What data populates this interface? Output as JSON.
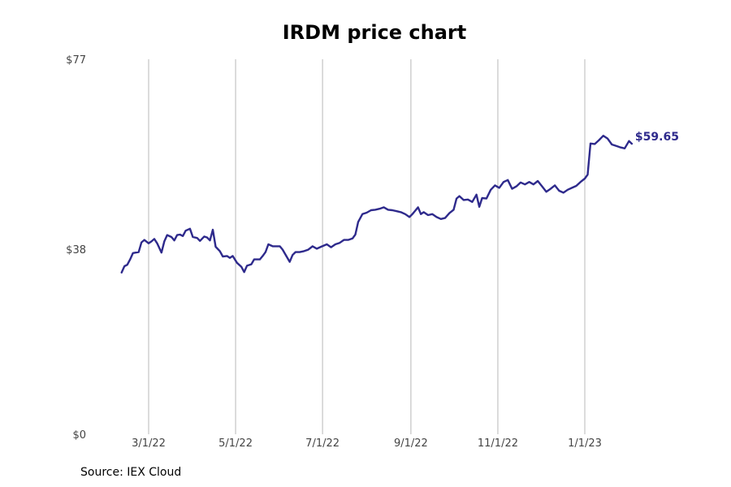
{
  "chart_data": {
    "type": "line",
    "title": "IRDM price chart",
    "source": "Source: IEX Cloud",
    "xlabel": "",
    "ylabel": "",
    "ylim": [
      0,
      77
    ],
    "y_ticks": [
      {
        "value": 0,
        "label": "$0"
      },
      {
        "value": 38,
        "label": "$38"
      },
      {
        "value": 77,
        "label": "$77"
      }
    ],
    "x_ticks": [
      {
        "date": "2022-03-01",
        "label": "3/1/22"
      },
      {
        "date": "2022-05-01",
        "label": "5/1/22"
      },
      {
        "date": "2022-07-01",
        "label": "7/1/22"
      },
      {
        "date": "2022-09-01",
        "label": "9/1/22"
      },
      {
        "date": "2022-11-01",
        "label": "11/1/22"
      },
      {
        "date": "2023-01-01",
        "label": "1/1/23"
      }
    ],
    "x_grid": true,
    "y_grid": false,
    "end_label": "$59.65",
    "line_color": "#2e2a8c",
    "series": [
      {
        "points": [
          [
            "2022-02-10",
            33.2
          ],
          [
            "2022-02-12",
            34.5
          ],
          [
            "2022-02-14",
            34.8
          ],
          [
            "2022-02-16",
            35.9
          ],
          [
            "2022-02-18",
            37.2
          ],
          [
            "2022-02-22",
            37.4
          ],
          [
            "2022-02-24",
            39.4
          ],
          [
            "2022-02-26",
            39.9
          ],
          [
            "2022-03-01",
            39.2
          ],
          [
            "2022-03-03",
            39.6
          ],
          [
            "2022-03-05",
            40.1
          ],
          [
            "2022-03-07",
            39.2
          ],
          [
            "2022-03-10",
            37.3
          ],
          [
            "2022-03-12",
            39.6
          ],
          [
            "2022-03-14",
            40.9
          ],
          [
            "2022-03-17",
            40.5
          ],
          [
            "2022-03-19",
            39.8
          ],
          [
            "2022-03-21",
            40.9
          ],
          [
            "2022-03-23",
            41.0
          ],
          [
            "2022-03-25",
            40.7
          ],
          [
            "2022-03-27",
            41.8
          ],
          [
            "2022-03-30",
            42.2
          ],
          [
            "2022-04-01",
            40.5
          ],
          [
            "2022-04-04",
            40.3
          ],
          [
            "2022-04-06",
            39.7
          ],
          [
            "2022-04-09",
            40.6
          ],
          [
            "2022-04-11",
            40.4
          ],
          [
            "2022-04-13",
            39.8
          ],
          [
            "2022-04-15",
            42.0
          ],
          [
            "2022-04-17",
            38.5
          ],
          [
            "2022-04-20",
            37.6
          ],
          [
            "2022-04-22",
            36.5
          ],
          [
            "2022-04-25",
            36.6
          ],
          [
            "2022-04-27",
            36.2
          ],
          [
            "2022-04-29",
            36.6
          ],
          [
            "2022-05-02",
            35.2
          ],
          [
            "2022-05-05",
            34.4
          ],
          [
            "2022-05-07",
            33.3
          ],
          [
            "2022-05-09",
            34.6
          ],
          [
            "2022-05-12",
            34.9
          ],
          [
            "2022-05-14",
            35.9
          ],
          [
            "2022-05-16",
            35.9
          ],
          [
            "2022-05-18",
            35.9
          ],
          [
            "2022-05-20",
            36.6
          ],
          [
            "2022-05-22",
            37.4
          ],
          [
            "2022-05-24",
            39.0
          ],
          [
            "2022-05-27",
            38.6
          ],
          [
            "2022-05-30",
            38.6
          ],
          [
            "2022-06-01",
            38.6
          ],
          [
            "2022-06-03",
            37.9
          ],
          [
            "2022-06-06",
            36.4
          ],
          [
            "2022-06-08",
            35.4
          ],
          [
            "2022-06-10",
            36.8
          ],
          [
            "2022-06-12",
            37.4
          ],
          [
            "2022-06-15",
            37.4
          ],
          [
            "2022-06-18",
            37.6
          ],
          [
            "2022-06-21",
            37.9
          ],
          [
            "2022-06-24",
            38.6
          ],
          [
            "2022-06-27",
            38.1
          ],
          [
            "2022-06-30",
            38.5
          ],
          [
            "2022-07-04",
            39.0
          ],
          [
            "2022-07-07",
            38.4
          ],
          [
            "2022-07-10",
            39.0
          ],
          [
            "2022-07-13",
            39.3
          ],
          [
            "2022-07-16",
            39.9
          ],
          [
            "2022-07-19",
            39.9
          ],
          [
            "2022-07-22",
            40.2
          ],
          [
            "2022-07-24",
            41.0
          ],
          [
            "2022-07-26",
            43.6
          ],
          [
            "2022-07-29",
            45.2
          ],
          [
            "2022-08-01",
            45.5
          ],
          [
            "2022-08-04",
            46.0
          ],
          [
            "2022-08-07",
            46.1
          ],
          [
            "2022-08-10",
            46.3
          ],
          [
            "2022-08-13",
            46.6
          ],
          [
            "2022-08-16",
            46.1
          ],
          [
            "2022-08-19",
            46.0
          ],
          [
            "2022-08-22",
            45.8
          ],
          [
            "2022-08-25",
            45.6
          ],
          [
            "2022-08-28",
            45.2
          ],
          [
            "2022-08-31",
            44.6
          ],
          [
            "2022-09-02",
            45.2
          ],
          [
            "2022-09-04",
            45.9
          ],
          [
            "2022-09-06",
            46.6
          ],
          [
            "2022-09-08",
            45.2
          ],
          [
            "2022-09-10",
            45.6
          ],
          [
            "2022-09-13",
            45.0
          ],
          [
            "2022-09-16",
            45.2
          ],
          [
            "2022-09-19",
            44.6
          ],
          [
            "2022-09-22",
            44.2
          ],
          [
            "2022-09-25",
            44.4
          ],
          [
            "2022-09-28",
            45.4
          ],
          [
            "2022-10-01",
            46.1
          ],
          [
            "2022-10-03",
            48.4
          ],
          [
            "2022-10-05",
            48.9
          ],
          [
            "2022-10-08",
            48.1
          ],
          [
            "2022-10-11",
            48.2
          ],
          [
            "2022-10-14",
            47.7
          ],
          [
            "2022-10-17",
            49.2
          ],
          [
            "2022-10-19",
            46.7
          ],
          [
            "2022-10-21",
            48.5
          ],
          [
            "2022-10-24",
            48.4
          ],
          [
            "2022-10-27",
            50.2
          ],
          [
            "2022-10-30",
            51.1
          ],
          [
            "2022-11-02",
            50.6
          ],
          [
            "2022-11-05",
            51.8
          ],
          [
            "2022-11-08",
            52.2
          ],
          [
            "2022-11-11",
            50.4
          ],
          [
            "2022-11-14",
            50.9
          ],
          [
            "2022-11-17",
            51.7
          ],
          [
            "2022-11-20",
            51.3
          ],
          [
            "2022-11-23",
            51.8
          ],
          [
            "2022-11-26",
            51.3
          ],
          [
            "2022-11-29",
            52.0
          ],
          [
            "2022-12-02",
            50.9
          ],
          [
            "2022-12-05",
            49.8
          ],
          [
            "2022-12-08",
            50.4
          ],
          [
            "2022-12-11",
            51.1
          ],
          [
            "2022-12-14",
            50.0
          ],
          [
            "2022-12-17",
            49.6
          ],
          [
            "2022-12-20",
            50.2
          ],
          [
            "2022-12-23",
            50.6
          ],
          [
            "2022-12-26",
            51.0
          ],
          [
            "2022-12-29",
            51.8
          ],
          [
            "2023-01-01",
            52.5
          ],
          [
            "2023-01-03",
            53.3
          ],
          [
            "2023-01-05",
            59.7
          ],
          [
            "2023-01-08",
            59.6
          ],
          [
            "2023-01-11",
            60.4
          ],
          [
            "2023-01-14",
            61.3
          ],
          [
            "2023-01-17",
            60.7
          ],
          [
            "2023-01-20",
            59.5
          ],
          [
            "2023-01-23",
            59.2
          ],
          [
            "2023-01-26",
            58.9
          ],
          [
            "2023-01-29",
            58.7
          ],
          [
            "2023-02-01",
            60.2
          ],
          [
            "2023-02-03",
            59.65
          ]
        ]
      }
    ]
  }
}
